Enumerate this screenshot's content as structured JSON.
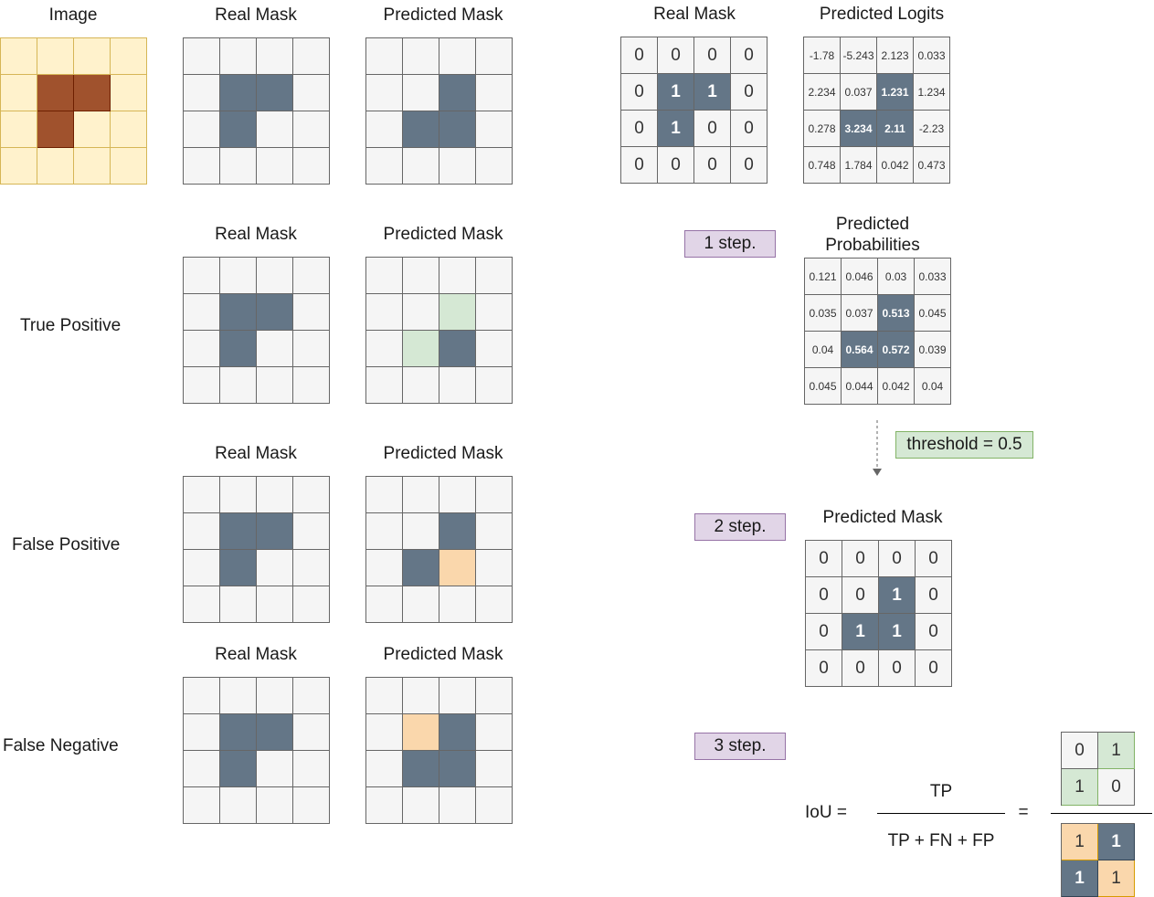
{
  "labels": {
    "image": "Image",
    "real_mask": "Real Mask",
    "predicted_mask": "Predicted Mask",
    "true_positive": "True Positive",
    "false_positive": "False Positive",
    "false_negative": "False Negative",
    "predicted_logits": "Predicted Logits",
    "predicted_probabilities_line1": "Predicted",
    "predicted_probabilities_line2": "Probabilities"
  },
  "steps": {
    "step1": "1 step.",
    "step2": "2 step.",
    "step3": "3 step.",
    "threshold": "threshold = 0.5"
  },
  "formula": {
    "lhs": "IoU =",
    "numerator": "TP",
    "denominator": "TP + FN + FP",
    "equals": "="
  },
  "colors": {
    "mask_fill": "#647687",
    "empty_fill": "#f5f5f5",
    "true_positive_fill": "#d5e8d4",
    "error_fill": "#fad7ac",
    "image_background": "#fff2cc",
    "image_object": "#a0522d",
    "step_fill": "#e1d5e7"
  },
  "grids": {
    "image": [
      "....",
      ".BB.",
      ".B..",
      "...."
    ],
    "row1_real": [
      "....",
      ".DD.",
      ".D..",
      "...."
    ],
    "row1_pred": [
      "....",
      "..D.",
      ".DD.",
      "...."
    ],
    "tp_real": [
      "....",
      ".DD.",
      ".D..",
      "...."
    ],
    "tp_pred": [
      "....",
      "..G.",
      ".GD.",
      "...."
    ],
    "fp_real": [
      "....",
      ".DD.",
      ".D..",
      "...."
    ],
    "fp_pred": [
      "....",
      "..D.",
      ".DO.",
      "...."
    ],
    "fn_real": [
      "....",
      ".DD.",
      ".D..",
      "...."
    ],
    "fn_pred": [
      "....",
      ".OD.",
      ".DD.",
      "...."
    ],
    "real_values": {
      "pattern": [
        "....",
        ".DD.",
        ".D..",
        "...."
      ],
      "values": [
        [
          "0",
          "0",
          "0",
          "0"
        ],
        [
          "0",
          "1",
          "1",
          "0"
        ],
        [
          "0",
          "1",
          "0",
          "0"
        ],
        [
          "0",
          "0",
          "0",
          "0"
        ]
      ]
    },
    "logits": {
      "pattern": [
        "....",
        "..D.",
        ".DD.",
        "...."
      ],
      "values": [
        [
          "-1.78",
          "-5.243",
          "2.123",
          "0.033"
        ],
        [
          "2.234",
          "0.037",
          "1.231",
          "1.234"
        ],
        [
          "0.278",
          "3.234",
          "2.11",
          "-2.23"
        ],
        [
          "0.748",
          "1.784",
          "0.042",
          "0.473"
        ]
      ]
    },
    "probabilities": {
      "pattern": [
        "....",
        "..D.",
        ".DD.",
        "...."
      ],
      "values": [
        [
          "0.121",
          "0.046",
          "0.03",
          "0.033"
        ],
        [
          "0.035",
          "0.037",
          "0.513",
          "0.045"
        ],
        [
          "0.04",
          "0.564",
          "0.572",
          "0.039"
        ],
        [
          "0.045",
          "0.044",
          "0.042",
          "0.04"
        ]
      ]
    },
    "predicted_values": {
      "pattern": [
        "....",
        "..D.",
        ".DD.",
        "...."
      ],
      "values": [
        [
          "0",
          "0",
          "0",
          "0"
        ],
        [
          "0",
          "0",
          "1",
          "0"
        ],
        [
          "0",
          "1",
          "1",
          "0"
        ],
        [
          "0",
          "0",
          "0",
          "0"
        ]
      ]
    },
    "iou_numerator": {
      "pattern": [
        ".G",
        "G."
      ],
      "values": [
        [
          "0",
          "1"
        ],
        [
          "1",
          "0"
        ]
      ]
    },
    "iou_denominator": {
      "pattern": [
        "OD",
        "DO"
      ],
      "values": [
        [
          "1",
          "1"
        ],
        [
          "1",
          "1"
        ]
      ]
    }
  }
}
